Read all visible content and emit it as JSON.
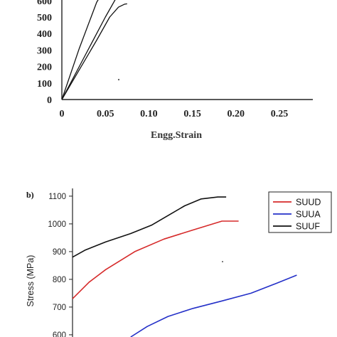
{
  "chart_data": [
    {
      "panel": "a",
      "type": "line",
      "title": "",
      "xlabel": "Engg.Strain",
      "ylabel": "",
      "xlim": [
        0,
        0.27
      ],
      "ylim": [
        0,
        640
      ],
      "x_ticks": [
        0,
        0.05,
        0.1,
        0.15,
        0.2,
        0.25
      ],
      "x_tick_labels": [
        "0",
        "0.05",
        "0.10",
        "0.15",
        "0.20",
        "0.25"
      ],
      "y_ticks": [
        0,
        100,
        200,
        300,
        400,
        500,
        600
      ],
      "y_tick_labels": [
        "0",
        "100",
        "200",
        "300",
        "400",
        "500",
        "600"
      ],
      "grid": false,
      "series": [
        {
          "color": "#111111",
          "points": [
            [
              0,
              0
            ],
            [
              0.02,
              310
            ],
            [
              0.04,
              590
            ],
            [
              0.047,
              650
            ]
          ]
        },
        {
          "color": "#111111",
          "points": [
            [
              0,
              0
            ],
            [
              0.025,
              250
            ],
            [
              0.05,
              500
            ],
            [
              0.065,
              640
            ]
          ]
        },
        {
          "color": "#111111",
          "points": [
            [
              0,
              0
            ],
            [
              0.02,
              180
            ],
            [
              0.04,
              360
            ],
            [
              0.055,
              500
            ],
            [
              0.065,
              560
            ],
            [
              0.072,
              578
            ],
            [
              0.075,
              580
            ]
          ]
        }
      ]
    },
    {
      "panel": "b",
      "panel_label": "b)",
      "type": "line",
      "title": "",
      "xlabel": "",
      "ylabel": "Stress (MPa)",
      "ylim": [
        592,
        1128
      ],
      "y_ticks": [
        600,
        700,
        800,
        900,
        1000,
        1100
      ],
      "y_tick_labels": [
        "600",
        "700",
        "800",
        "900",
        "1000",
        "1100"
      ],
      "grid": false,
      "legend_position": "top-right",
      "series": [
        {
          "name": "SUUD",
          "color": "#d62a2a",
          "points": [
            [
              0,
              730
            ],
            [
              0.08,
              790
            ],
            [
              0.16,
              835
            ],
            [
              0.3,
              900
            ],
            [
              0.44,
              945
            ],
            [
              0.58,
              978
            ],
            [
              0.72,
              1010
            ],
            [
              0.8,
              1010
            ]
          ]
        },
        {
          "name": "SUUA",
          "color": "#2430c8",
          "points": [
            [
              0.28,
              592
            ],
            [
              0.36,
              630
            ],
            [
              0.46,
              666
            ],
            [
              0.58,
              695
            ],
            [
              0.72,
              722
            ],
            [
              0.86,
              750
            ],
            [
              0.98,
              785
            ],
            [
              1.08,
              815
            ]
          ]
        },
        {
          "name": "SUUF",
          "color": "#111111",
          "points": [
            [
              0,
              880
            ],
            [
              0.06,
              905
            ],
            [
              0.16,
              935
            ],
            [
              0.28,
              965
            ],
            [
              0.38,
              995
            ],
            [
              0.46,
              1030
            ],
            [
              0.54,
              1065
            ],
            [
              0.62,
              1090
            ],
            [
              0.7,
              1097
            ],
            [
              0.74,
              1097
            ]
          ]
        }
      ]
    }
  ]
}
